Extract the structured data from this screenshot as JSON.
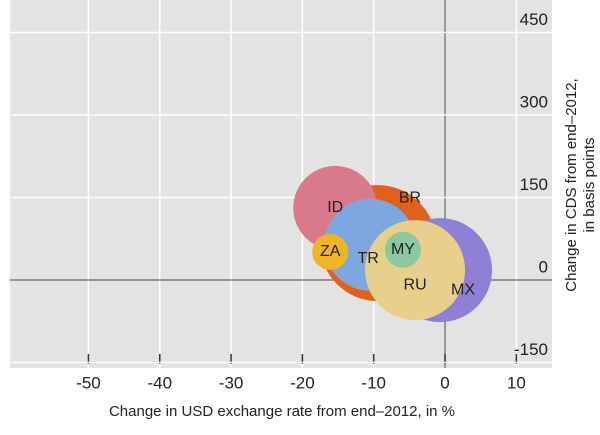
{
  "chart_data": {
    "type": "bubble",
    "xlabel": "Change in USD exchange rate from end–2012, in %",
    "ylabel": [
      "Change in CDS from end–2012,",
      "in basis points"
    ],
    "xlim": [
      -61,
      15
    ],
    "ylim": [
      -160,
      509
    ],
    "xticks": [
      -50,
      -40,
      -30,
      -20,
      -10,
      0,
      10
    ],
    "yticks": [
      -150,
      0,
      150,
      300,
      450
    ],
    "grid": true,
    "series": [
      {
        "name": "BR",
        "color": "#e0601c",
        "x": [
          -9.4
        ],
        "values": [
          67
        ],
        "sizes": [
          58
        ]
      },
      {
        "name": "MX",
        "color": "#8f7fd6",
        "x": [
          -0.7
        ],
        "values": [
          18
        ],
        "sizes": [
          52
        ]
      },
      {
        "name": "ID",
        "color": "#d97a8c",
        "x": [
          -15.4
        ],
        "values": [
          131
        ],
        "sizes": [
          42
        ]
      },
      {
        "name": "TR",
        "color": "#7ea6e0",
        "x": [
          -10.5
        ],
        "values": [
          64
        ],
        "sizes": [
          46
        ]
      },
      {
        "name": "RU",
        "color": "#e8d08c",
        "x": [
          -4.2
        ],
        "values": [
          18
        ],
        "sizes": [
          50
        ]
      },
      {
        "name": "ZA",
        "color": "#f0b429",
        "x": [
          -16.1
        ],
        "values": [
          51
        ],
        "sizes": [
          18
        ]
      },
      {
        "name": "MY",
        "color": "#8cc9a0",
        "x": [
          -5.9
        ],
        "values": [
          55
        ],
        "sizes": [
          18
        ]
      }
    ]
  }
}
